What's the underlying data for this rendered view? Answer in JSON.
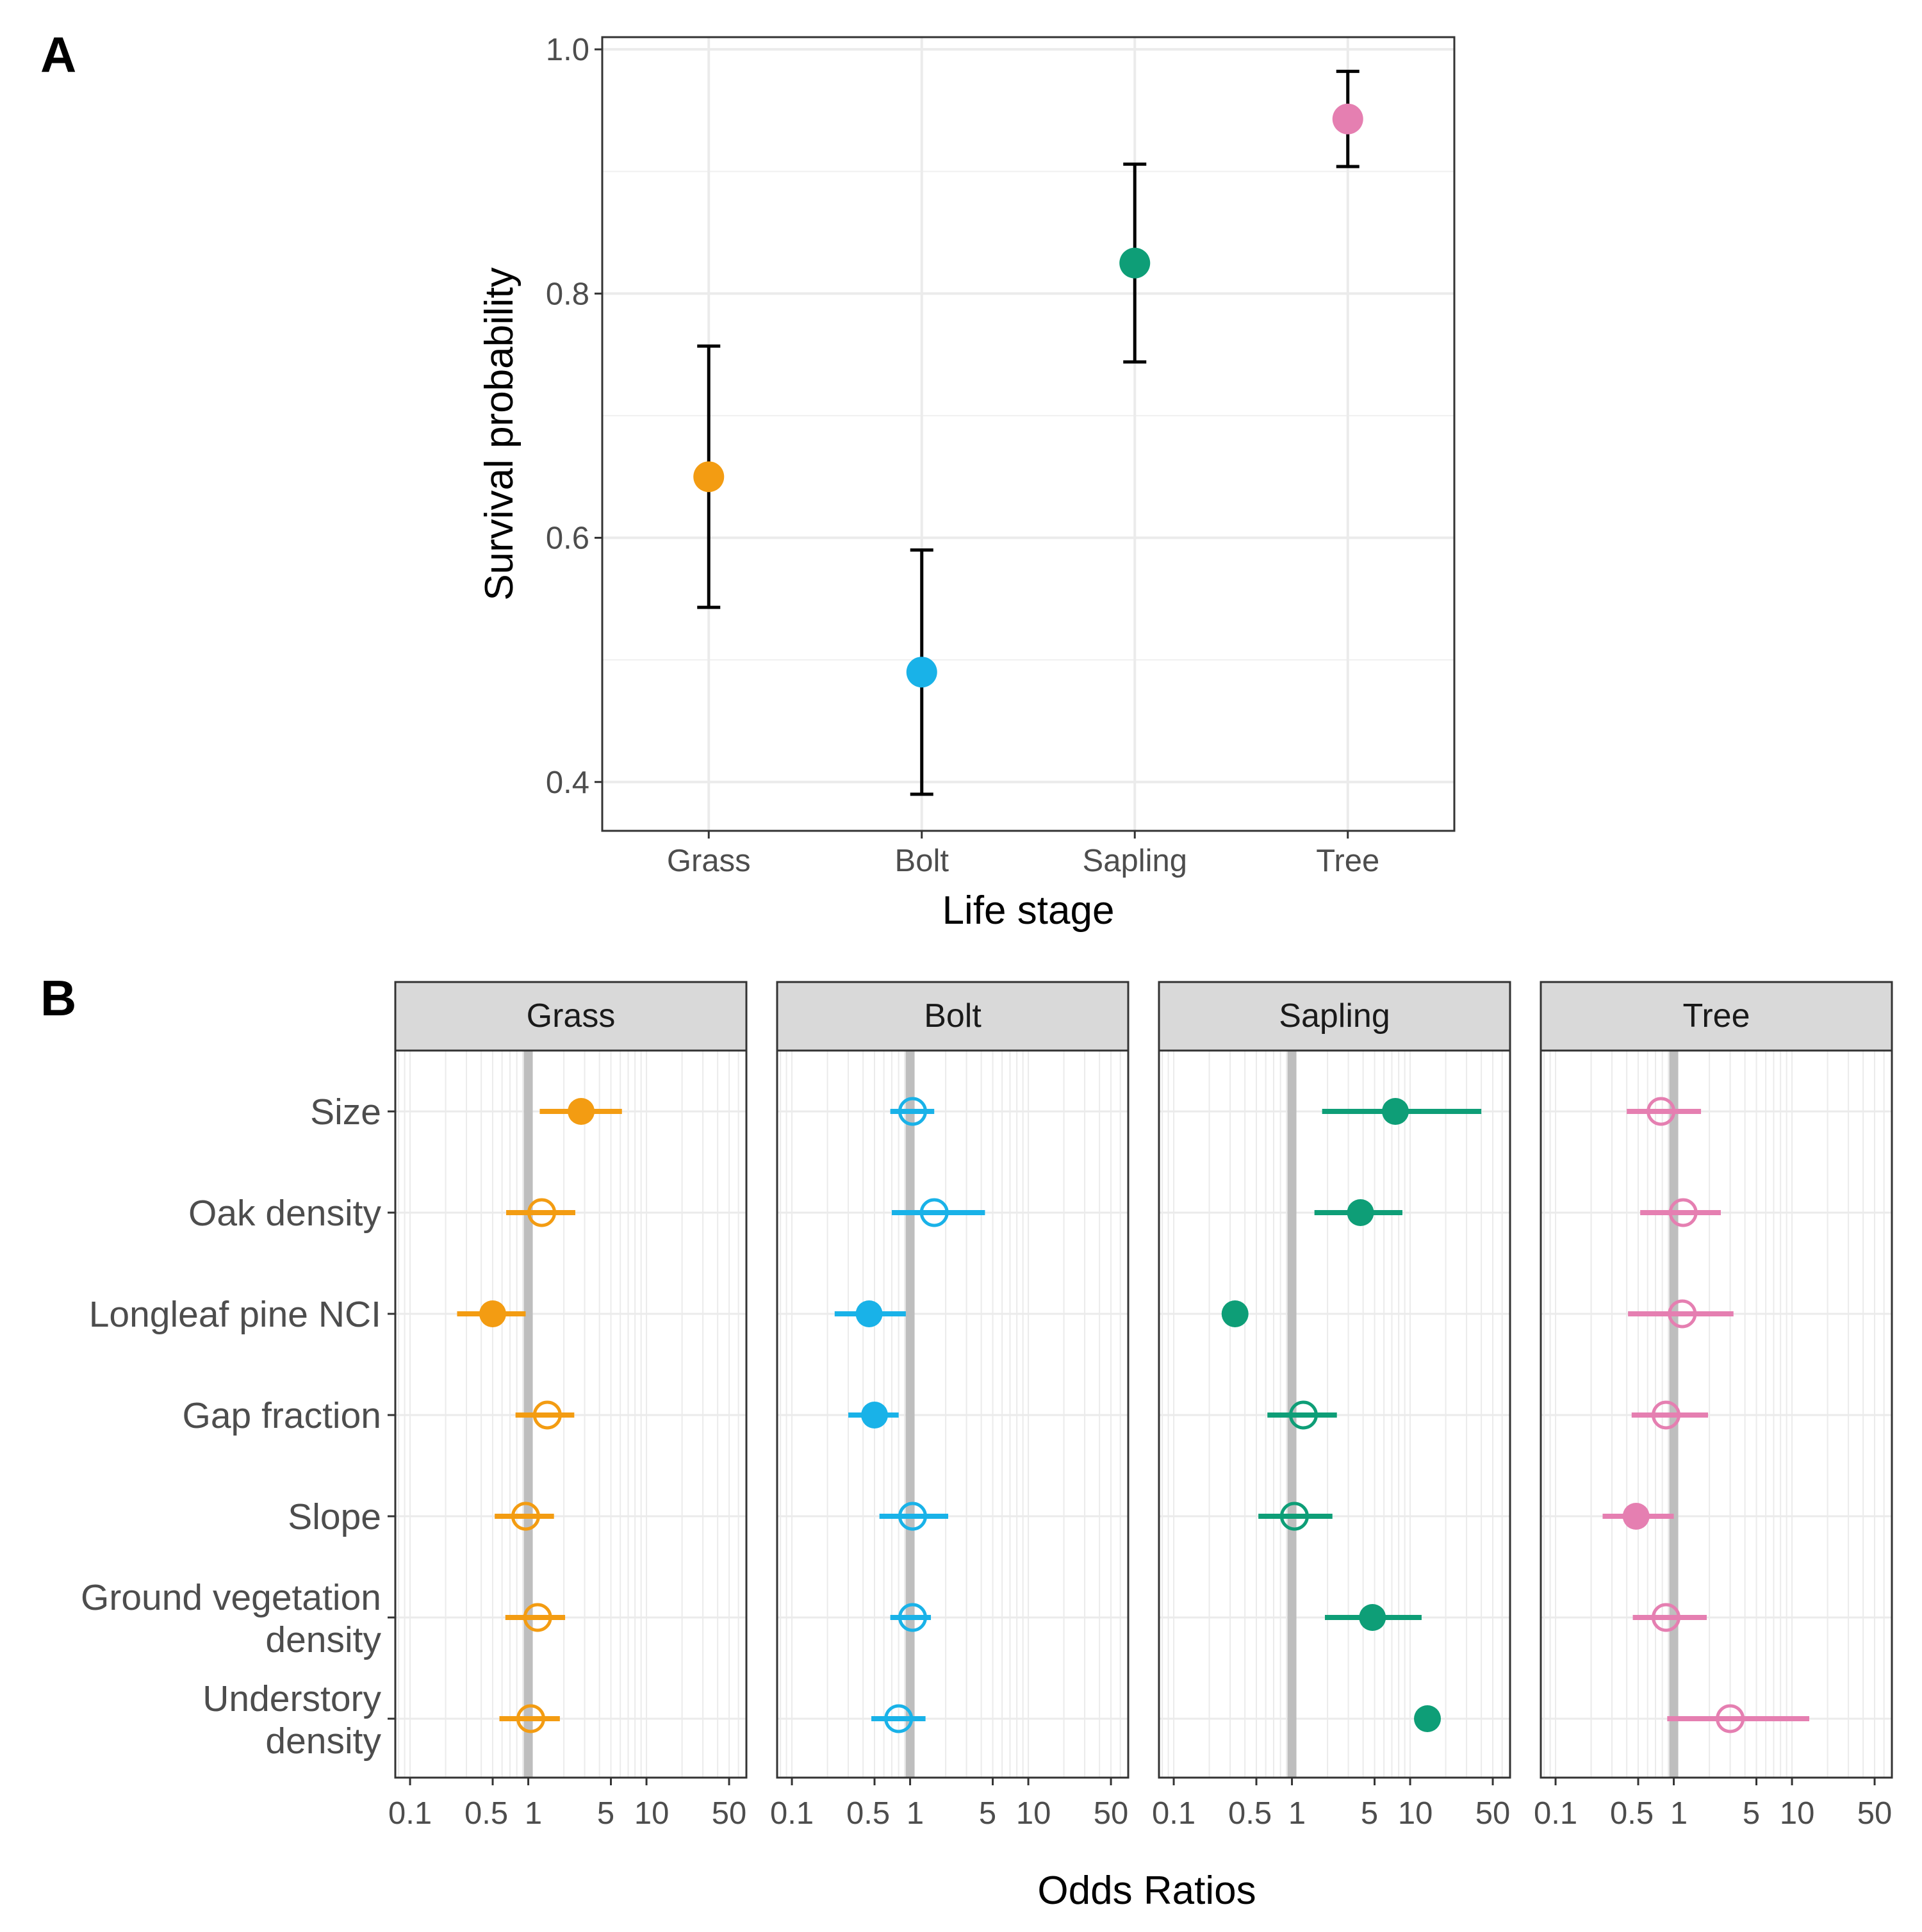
{
  "panel_labels": {
    "a": "A",
    "b": "B"
  },
  "colors": {
    "Grass": "#f39c12",
    "Bolt": "#19b2e8",
    "Sapling": "#0e9e77",
    "Tree": "#e57fb1"
  },
  "chart_data": [
    {
      "type": "scatter",
      "title": "",
      "xlabel": "Life stage",
      "ylabel": "Survival probability",
      "ylim": [
        0.36,
        1.01
      ],
      "yticks": [
        "0.4",
        "0.6",
        "0.8",
        "1.0"
      ],
      "categories": [
        "Grass",
        "Bolt",
        "Sapling",
        "Tree"
      ],
      "series": [
        {
          "name": "Survival probability",
          "values": [
            0.65,
            0.49,
            0.825,
            0.943
          ],
          "lower": [
            0.543,
            0.39,
            0.744,
            0.904
          ],
          "upper": [
            0.757,
            0.59,
            0.906,
            0.982
          ]
        }
      ],
      "grid": true
    },
    {
      "type": "scatter",
      "xlabel": "Odds Ratios",
      "xscale": "log",
      "xticks": [
        "0.1",
        "0.5",
        "1",
        "5",
        "10",
        "50"
      ],
      "xlim": [
        0.075,
        70
      ],
      "reference_line": 1,
      "rows": [
        "Size",
        "Oak density",
        "Longleaf pine NCI",
        "Gap fraction",
        "Slope",
        "Ground vegetation\ndensity",
        "Understory\ndensity"
      ],
      "panels": [
        {
          "name": "Grass",
          "points": [
            {
              "estimate": 2.8,
              "lower": 1.25,
              "upper": 6.2,
              "significant": true
            },
            {
              "estimate": 1.3,
              "lower": 0.65,
              "upper": 2.5,
              "significant": false
            },
            {
              "estimate": 0.5,
              "lower": 0.25,
              "upper": 0.95,
              "significant": true
            },
            {
              "estimate": 1.45,
              "lower": 0.78,
              "upper": 2.45,
              "significant": false
            },
            {
              "estimate": 0.95,
              "lower": 0.52,
              "upper": 1.65,
              "significant": false
            },
            {
              "estimate": 1.2,
              "lower": 0.64,
              "upper": 2.05,
              "significant": false
            },
            {
              "estimate": 1.05,
              "lower": 0.57,
              "upper": 1.85,
              "significant": false
            }
          ]
        },
        {
          "name": "Bolt",
          "points": [
            {
              "estimate": 1.05,
              "lower": 0.68,
              "upper": 1.6,
              "significant": false
            },
            {
              "estimate": 1.6,
              "lower": 0.7,
              "upper": 4.3,
              "significant": false
            },
            {
              "estimate": 0.45,
              "lower": 0.23,
              "upper": 0.92,
              "significant": true
            },
            {
              "estimate": 0.5,
              "lower": 0.3,
              "upper": 0.8,
              "significant": true
            },
            {
              "estimate": 1.05,
              "lower": 0.55,
              "upper": 2.1,
              "significant": false
            },
            {
              "estimate": 1.05,
              "lower": 0.68,
              "upper": 1.5,
              "significant": false
            },
            {
              "estimate": 0.8,
              "lower": 0.47,
              "upper": 1.35,
              "significant": false
            }
          ]
        },
        {
          "name": "Sapling",
          "points": [
            {
              "estimate": 7.5,
              "lower": 1.8,
              "upper": 40,
              "significant": true
            },
            {
              "estimate": 3.8,
              "lower": 1.55,
              "upper": 8.6,
              "significant": true
            },
            {
              "estimate": 0.33,
              "lower": 0.33,
              "upper": 0.33,
              "significant": true
            },
            {
              "estimate": 1.25,
              "lower": 0.62,
              "upper": 2.4,
              "significant": false
            },
            {
              "estimate": 1.05,
              "lower": 0.52,
              "upper": 2.2,
              "significant": false
            },
            {
              "estimate": 4.8,
              "lower": 1.9,
              "upper": 12.5,
              "significant": true
            },
            {
              "estimate": 14,
              "lower": 14,
              "upper": 14,
              "significant": true
            }
          ]
        },
        {
          "name": "Tree",
          "points": [
            {
              "estimate": 0.78,
              "lower": 0.4,
              "upper": 1.7,
              "significant": false
            },
            {
              "estimate": 1.2,
              "lower": 0.52,
              "upper": 2.5,
              "significant": false
            },
            {
              "estimate": 1.18,
              "lower": 0.41,
              "upper": 3.2,
              "significant": false
            },
            {
              "estimate": 0.86,
              "lower": 0.44,
              "upper": 1.95,
              "significant": false
            },
            {
              "estimate": 0.48,
              "lower": 0.25,
              "upper": 1.0,
              "significant": true
            },
            {
              "estimate": 0.86,
              "lower": 0.45,
              "upper": 1.9,
              "significant": false
            },
            {
              "estimate": 3.0,
              "lower": 0.88,
              "upper": 14,
              "significant": false
            }
          ]
        }
      ]
    }
  ]
}
